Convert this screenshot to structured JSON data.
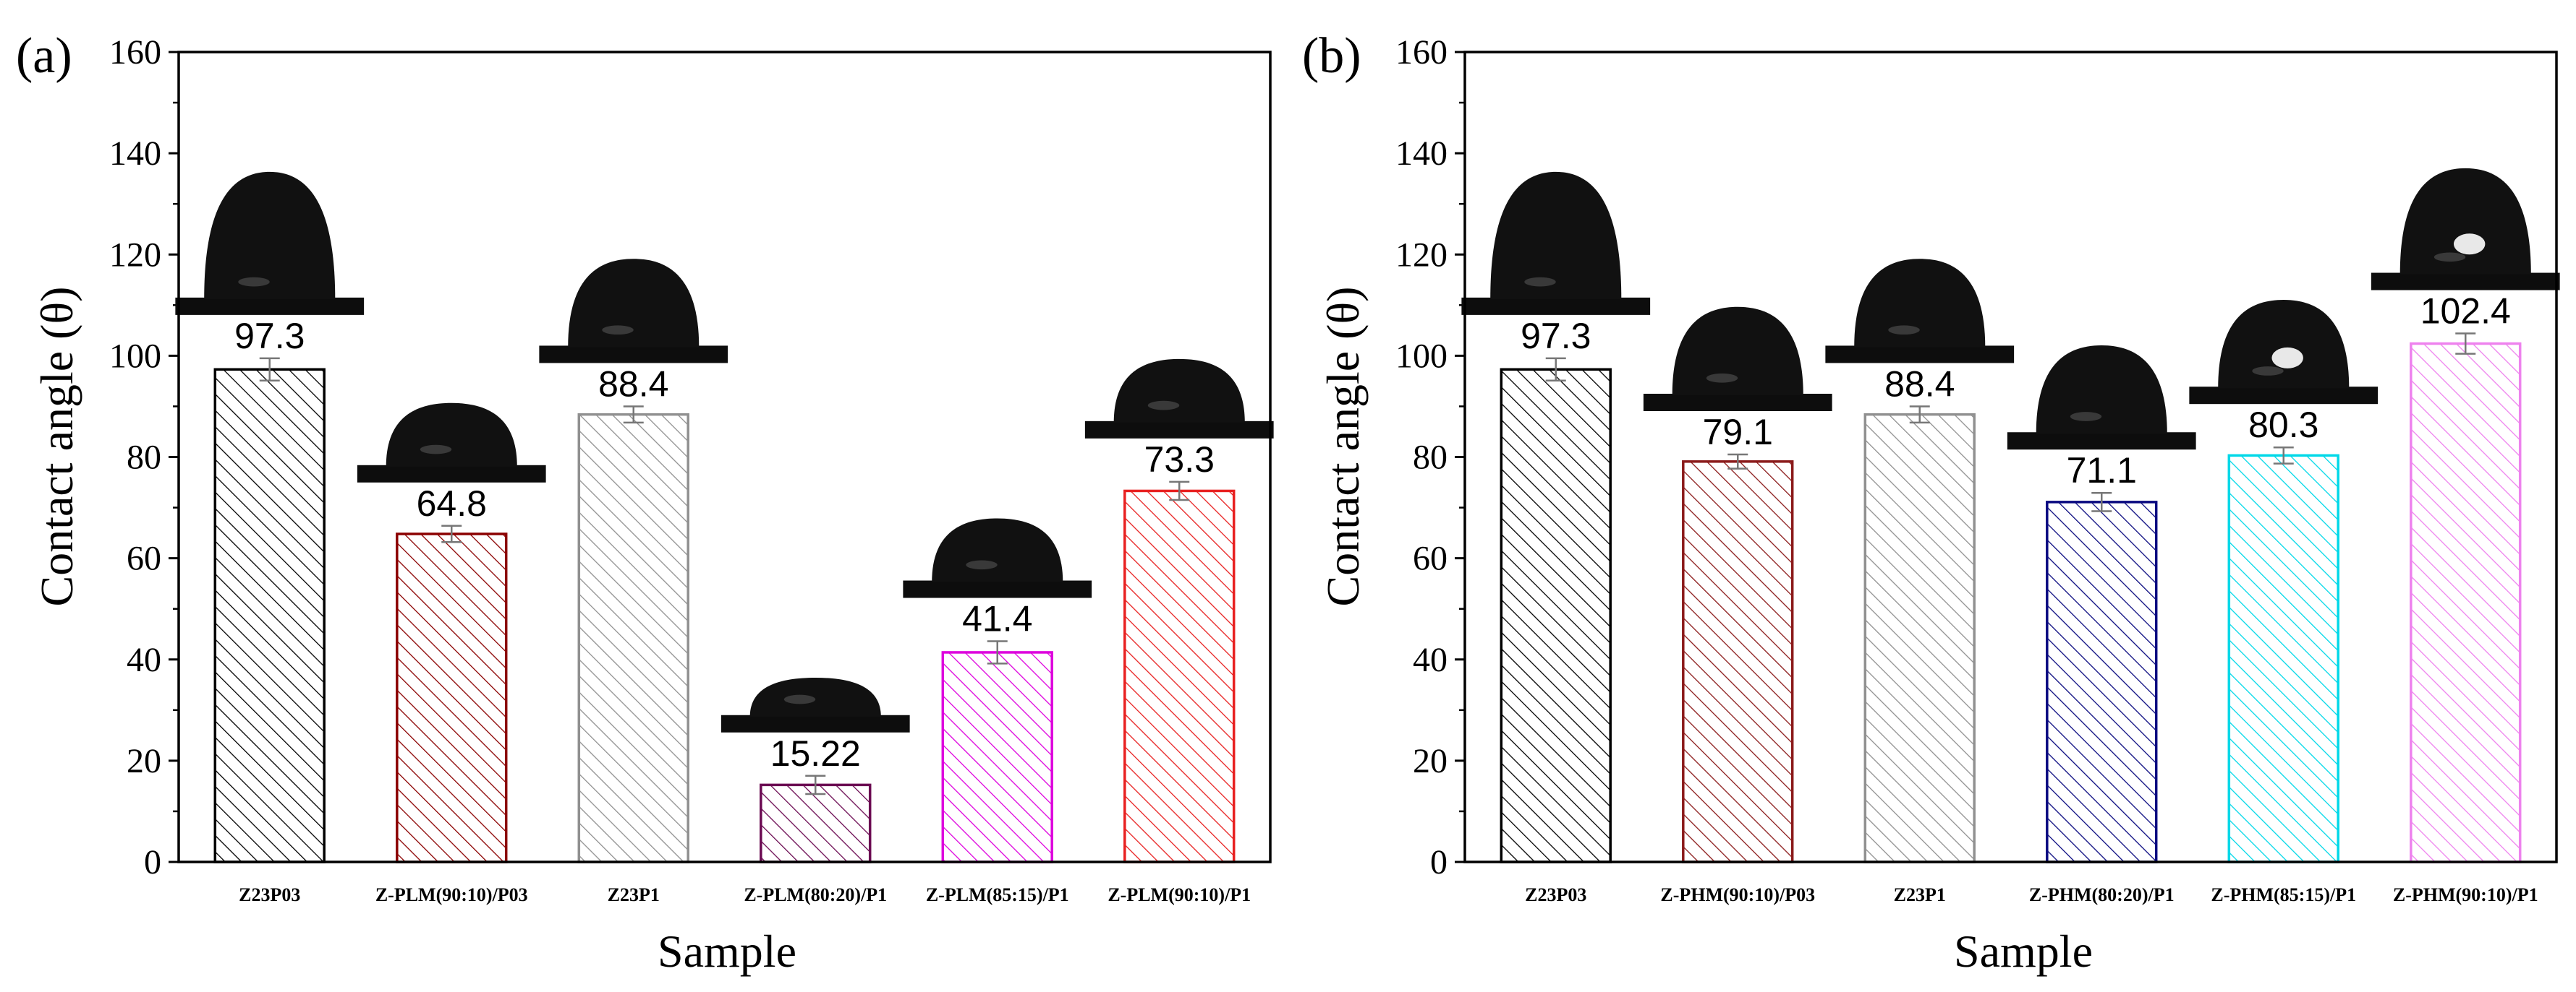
{
  "chart_data": [
    {
      "panel_label": "(a)",
      "type": "bar",
      "title": "",
      "xlabel": "Sample",
      "ylabel": "Contact angle (θ)",
      "ylim": [
        0,
        160
      ],
      "yticks": [
        "0",
        "20",
        "40",
        "60",
        "80",
        "100",
        "120",
        "140",
        "160"
      ],
      "grid": false,
      "fill": "diagonal-hatch",
      "categories": [
        "Z23P03",
        "Z-PLM(90:10)/P03",
        "Z23P1",
        "Z-PLM(80:20)/P1",
        "Z-PLM(85:15)/P1",
        "Z-PLM(90:10)/P1"
      ],
      "values": [
        97.3,
        64.8,
        88.4,
        15.22,
        41.4,
        73.3
      ],
      "errors": [
        2.2,
        1.6,
        1.6,
        1.8,
        2.2,
        1.8
      ],
      "value_labels": [
        "97.3",
        "64.8",
        "88.4",
        "15.22",
        "41.4",
        "73.3"
      ],
      "colors": [
        "#000000",
        "#8b0000",
        "#909090",
        "#6b0a52",
        "#dd00dd",
        "#e82020"
      ],
      "droplet_profile": [
        "tall",
        "flat",
        "medium",
        "very-flat",
        "flat",
        "flat"
      ]
    },
    {
      "panel_label": "(b)",
      "type": "bar",
      "title": "",
      "xlabel": "Sample",
      "ylabel": "Contact angle (θ)",
      "ylim": [
        0,
        160
      ],
      "yticks": [
        "0",
        "20",
        "40",
        "60",
        "80",
        "100",
        "120",
        "140",
        "160"
      ],
      "grid": false,
      "fill": "diagonal-hatch",
      "categories": [
        "Z23P03",
        "Z-PHM(90:10)/P03",
        "Z23P1",
        "Z-PHM(80:20)/P1",
        "Z-PHM(85:15)/P1",
        "Z-PHM(90:10)/P1"
      ],
      "values": [
        97.3,
        79.1,
        88.4,
        71.1,
        80.3,
        102.4
      ],
      "errors": [
        2.2,
        1.4,
        1.6,
        1.8,
        1.6,
        2.0
      ],
      "value_labels": [
        "97.3",
        "79.1",
        "88.4",
        "71.1",
        "80.3",
        "102.4"
      ],
      "colors": [
        "#000000",
        "#8b1a1a",
        "#909090",
        "#0a0a80",
        "#00d8e8",
        "#ee82ee"
      ],
      "droplet_profile": [
        "tall",
        "medium",
        "medium",
        "medium",
        "medium-glossy",
        "tall-glossy"
      ]
    }
  ]
}
